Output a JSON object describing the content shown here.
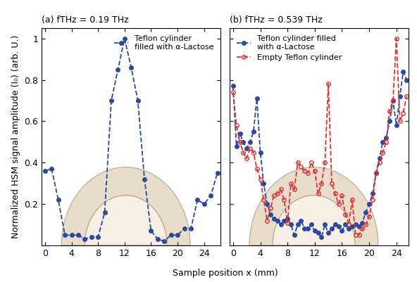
{
  "x_label": "Sample position x (mm)",
  "chart_data": [
    {
      "type": "line",
      "title": "(a) fTHz = 0.19 THz",
      "y_label": "Normalized HSM signal amplitude (I₀) (arb. U.)",
      "xlim": [
        -0.5,
        26.5
      ],
      "xticks": [
        0,
        4,
        8,
        12,
        16,
        20,
        24
      ],
      "ylim": [
        0,
        1.05
      ],
      "yticks": [
        0.2,
        0.4,
        0.6,
        0.8,
        1
      ],
      "legend": "upper right",
      "grid": false,
      "x": [
        0,
        1,
        2,
        3,
        4,
        5,
        6,
        7,
        8,
        9,
        10,
        11,
        12,
        13,
        14,
        15,
        16,
        17,
        18,
        19,
        20,
        21,
        22,
        23,
        24,
        25,
        26
      ],
      "series": [
        {
          "name": "Teflon cylinder\nfilled with α-Lactose",
          "color": "#2b4a9b",
          "marker": "filled_circle",
          "line_style": "dashed",
          "values": [
            0.36,
            0.37,
            0.22,
            0.05,
            0.05,
            0.05,
            0.03,
            0.04,
            0.04,
            0.16,
            0.7,
            0.85,
            1.0,
            0.86,
            0.7,
            0.32,
            0.07,
            0.03,
            0.02,
            0.05,
            0.05,
            0.08,
            0.08,
            0.22,
            0.2,
            0.24,
            0.35
          ]
        }
      ]
    },
    {
      "type": "line",
      "title": "(b) fTHz = 0.539 THz",
      "xlim": [
        -0.5,
        25.8
      ],
      "xticks": [
        0,
        4,
        8,
        12,
        16,
        20,
        24
      ],
      "ylim": [
        0,
        1.05
      ],
      "yticks": [
        0.2,
        0.4,
        0.6,
        0.8,
        1
      ],
      "tick_labels": "x",
      "legend": "upper left",
      "grid": false,
      "x": [
        0,
        0.5,
        1,
        1.5,
        2,
        2.5,
        3,
        3.5,
        4,
        4.5,
        5,
        5.5,
        6,
        6.5,
        7,
        7.5,
        8,
        8.5,
        9,
        9.5,
        10,
        10.5,
        11,
        11.5,
        12,
        12.5,
        13,
        13.5,
        14,
        14.5,
        15,
        15.5,
        16,
        16.5,
        17,
        17.5,
        18,
        18.5,
        19,
        19.5,
        20,
        20.5,
        21,
        21.5,
        22,
        22.5,
        23,
        23.5,
        24,
        24.5,
        25,
        25.5
      ],
      "series": [
        {
          "name": "Teflon cylinder filled\nwith α-Lactose",
          "color": "#2b4a9b",
          "marker": "filled_circle",
          "line_style": "dashed",
          "values": [
            0.77,
            0.48,
            0.54,
            0.5,
            0.47,
            0.5,
            0.55,
            0.71,
            0.45,
            0.3,
            0.2,
            0.15,
            0.13,
            0.12,
            0.1,
            0.12,
            0.13,
            0.1,
            0.05,
            0.1,
            0.12,
            0.08,
            0.08,
            0.1,
            0.07,
            0.06,
            0.04,
            0.1,
            0.06,
            0.08,
            0.1,
            0.09,
            0.07,
            0.1,
            0.08,
            0.09,
            0.1,
            0.09,
            0.11,
            0.16,
            0.2,
            0.25,
            0.35,
            0.42,
            0.5,
            0.52,
            0.6,
            0.7,
            0.58,
            0.72,
            0.84,
            0.8
          ]
        },
        {
          "name": "Empty Teflon cylinder",
          "color": "#e03030",
          "marker": "open_circle",
          "line_style": "dashed",
          "values": [
            0.74,
            0.58,
            0.5,
            0.45,
            0.42,
            0.47,
            0.45,
            0.37,
            0.32,
            0.22,
            0.12,
            0.18,
            0.24,
            0.25,
            0.27,
            0.22,
            0.11,
            0.3,
            0.27,
            0.4,
            0.38,
            0.36,
            0.35,
            0.4,
            0.36,
            0.25,
            0.3,
            0.4,
            0.78,
            0.3,
            0.25,
            0.2,
            0.24,
            0.15,
            0.1,
            0.22,
            0.05,
            0.05,
            0.08,
            0.1,
            0.14,
            0.22,
            0.35,
            0.4,
            0.45,
            0.5,
            0.65,
            0.7,
            1.0,
            0.6,
            0.64,
            0.72
          ]
        }
      ]
    }
  ]
}
